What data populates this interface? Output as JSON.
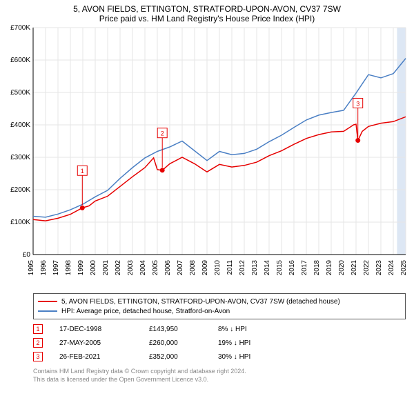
{
  "title_line1": "5, AVON FIELDS, ETTINGTON, STRATFORD-UPON-AVON, CV37 7SW",
  "title_line2": "Price paid vs. HM Land Registry's House Price Index (HPI)",
  "chart": {
    "type": "line",
    "background_color": "#ffffff",
    "grid_color": "#e6e6e6",
    "axis_color": "#000000",
    "xlim": [
      1995,
      2025
    ],
    "ylim": [
      0,
      700000
    ],
    "ytick_step": 100000,
    "yticks": [
      "£0",
      "£100K",
      "£200K",
      "£300K",
      "£400K",
      "£500K",
      "£600K",
      "£700K"
    ],
    "xticks": [
      1995,
      1996,
      1997,
      1998,
      1999,
      2000,
      2001,
      2002,
      2003,
      2004,
      2005,
      2006,
      2007,
      2008,
      2009,
      2010,
      2011,
      2012,
      2013,
      2014,
      2015,
      2016,
      2017,
      2018,
      2019,
      2020,
      2021,
      2022,
      2023,
      2024,
      2025
    ],
    "label_fontsize": 10,
    "highlight_band_color": "#dde7f4",
    "highlight_band_xstart": 2024.3,
    "highlight_band_xend": 2025,
    "series": [
      {
        "name": "property",
        "label": "5, AVON FIELDS, ETTINGTON, STRATFORD-UPON-AVON, CV37 7SW (detached house)",
        "color": "#e60000",
        "line_width": 1.5,
        "data": [
          [
            1995,
            108000
          ],
          [
            1996,
            104000
          ],
          [
            1997,
            112000
          ],
          [
            1998,
            124000
          ],
          [
            1998.96,
            143950
          ],
          [
            1999.5,
            150000
          ],
          [
            2000,
            165000
          ],
          [
            2001,
            180000
          ],
          [
            2002,
            210000
          ],
          [
            2003,
            240000
          ],
          [
            2004,
            268000
          ],
          [
            2004.7,
            298000
          ],
          [
            2005,
            262000
          ],
          [
            2005.4,
            260000
          ],
          [
            2006,
            280000
          ],
          [
            2007,
            300000
          ],
          [
            2008,
            280000
          ],
          [
            2009,
            255000
          ],
          [
            2010,
            278000
          ],
          [
            2011,
            270000
          ],
          [
            2012,
            275000
          ],
          [
            2013,
            285000
          ],
          [
            2014,
            305000
          ],
          [
            2015,
            320000
          ],
          [
            2016,
            340000
          ],
          [
            2017,
            358000
          ],
          [
            2018,
            370000
          ],
          [
            2019,
            378000
          ],
          [
            2020,
            380000
          ],
          [
            2020.8,
            400000
          ],
          [
            2021,
            402000
          ],
          [
            2021.15,
            352000
          ],
          [
            2021.5,
            380000
          ],
          [
            2022,
            395000
          ],
          [
            2023,
            405000
          ],
          [
            2024,
            410000
          ],
          [
            2025,
            425000
          ]
        ]
      },
      {
        "name": "hpi",
        "label": "HPI: Average price, detached house, Stratford-on-Avon",
        "color": "#4a7fc4",
        "line_width": 1.5,
        "data": [
          [
            1995,
            118000
          ],
          [
            1996,
            115000
          ],
          [
            1997,
            125000
          ],
          [
            1998,
            138000
          ],
          [
            1999,
            155000
          ],
          [
            2000,
            178000
          ],
          [
            2001,
            198000
          ],
          [
            2002,
            235000
          ],
          [
            2003,
            268000
          ],
          [
            2004,
            298000
          ],
          [
            2005,
            318000
          ],
          [
            2006,
            332000
          ],
          [
            2007,
            350000
          ],
          [
            2008,
            320000
          ],
          [
            2009,
            290000
          ],
          [
            2010,
            318000
          ],
          [
            2011,
            308000
          ],
          [
            2012,
            312000
          ],
          [
            2013,
            325000
          ],
          [
            2014,
            348000
          ],
          [
            2015,
            368000
          ],
          [
            2016,
            392000
          ],
          [
            2017,
            415000
          ],
          [
            2018,
            430000
          ],
          [
            2019,
            438000
          ],
          [
            2020,
            445000
          ],
          [
            2021,
            498000
          ],
          [
            2022,
            555000
          ],
          [
            2023,
            545000
          ],
          [
            2024,
            558000
          ],
          [
            2025,
            605000
          ]
        ]
      }
    ],
    "markers": [
      {
        "n": "1",
        "x": 1998.96,
        "y": 143950,
        "color": "#e60000"
      },
      {
        "n": "2",
        "x": 2005.4,
        "y": 260000,
        "color": "#e60000"
      },
      {
        "n": "3",
        "x": 2021.15,
        "y": 352000,
        "color": "#e60000"
      }
    ],
    "marker_pointer_yoffset": 130000
  },
  "legend": {
    "series": [
      {
        "color": "#e60000",
        "label": "5, AVON FIELDS, ETTINGTON, STRATFORD-UPON-AVON, CV37 7SW (detached house)"
      },
      {
        "color": "#4a7fc4",
        "label": "HPI: Average price, detached house, Stratford-on-Avon"
      }
    ]
  },
  "marker_rows": [
    {
      "n": "1",
      "color": "#e60000",
      "date": "17-DEC-1998",
      "price": "£143,950",
      "diff": "8% ↓ HPI"
    },
    {
      "n": "2",
      "color": "#e60000",
      "date": "27-MAY-2005",
      "price": "£260,000",
      "diff": "19% ↓ HPI"
    },
    {
      "n": "3",
      "color": "#e60000",
      "date": "26-FEB-2021",
      "price": "£352,000",
      "diff": "30% ↓ HPI"
    }
  ],
  "attribution_line1": "Contains HM Land Registry data © Crown copyright and database right 2024.",
  "attribution_line2": "This data is licensed under the Open Government Licence v3.0."
}
